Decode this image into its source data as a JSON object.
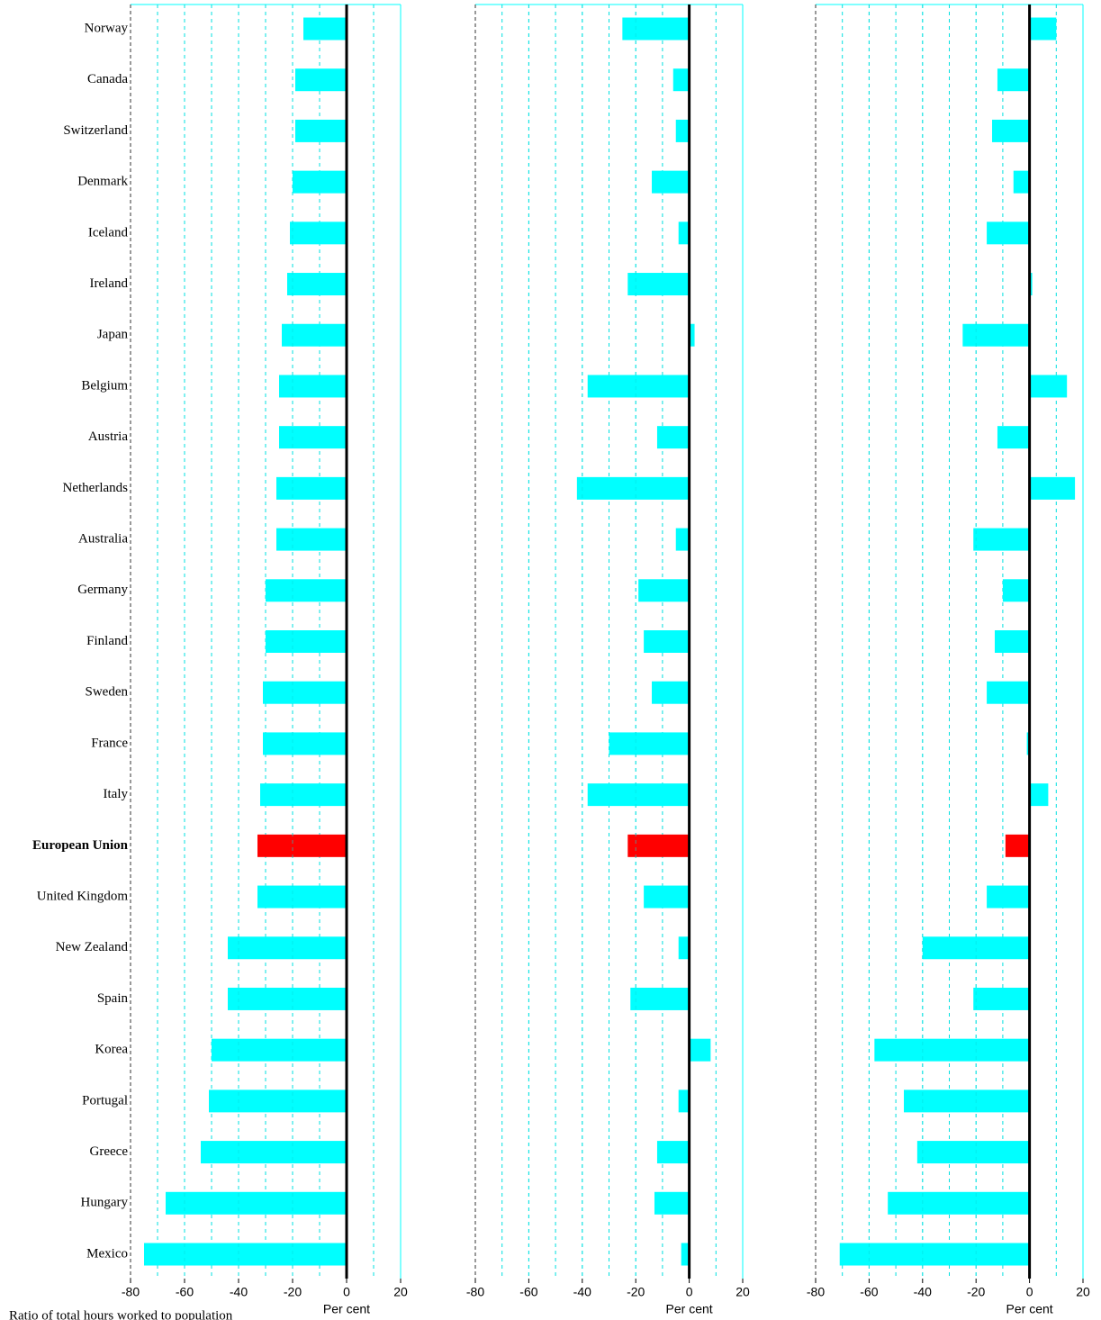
{
  "chart_data": [
    {
      "type": "bar",
      "orientation": "horizontal",
      "categories": [
        "Norway",
        "Canada",
        "Switzerland",
        "Denmark",
        "Iceland",
        "Ireland",
        "Japan",
        "Belgium",
        "Austria",
        "Netherlands",
        "Australia",
        "Germany",
        "Finland",
        "Sweden",
        "France",
        "Italy",
        "European Union",
        "United Kingdom",
        "New Zealand",
        "Spain",
        "Korea",
        "Portugal",
        "Greece",
        "Hungary",
        "Mexico"
      ],
      "values": [
        -16,
        -19,
        -19,
        -20,
        -21,
        -22,
        -24,
        -25,
        -25,
        -26,
        -26,
        -30,
        -30,
        -31,
        -31,
        -32,
        -33,
        -33,
        -44,
        -44,
        -50,
        -51,
        -54,
        -67,
        -75
      ],
      "color": "#00ffff",
      "highlight": {
        "index": 16,
        "color": "#ff0000"
      },
      "xlim": [
        -80,
        20
      ],
      "xticks": [
        -80,
        -60,
        -40,
        -20,
        0,
        20
      ],
      "grid": true,
      "xlabel": "Per cent",
      "note": "Ratio of total hours worked to population"
    },
    {
      "type": "bar",
      "orientation": "horizontal",
      "values": [
        -25,
        -6,
        -5,
        -14,
        -4,
        -23,
        2,
        -38,
        -12,
        -42,
        -5,
        -19,
        -17,
        -14,
        -30,
        -38,
        -23,
        -17,
        -4,
        -22,
        8,
        -4,
        -12,
        -13,
        -3
      ],
      "color": "#00ffff",
      "highlight": {
        "index": 16,
        "color": "#ff0000"
      },
      "xlim": [
        -80,
        20
      ],
      "xticks": [
        -80,
        -60,
        -40,
        -20,
        0,
        20
      ],
      "grid": true,
      "xlabel": "Per cent"
    },
    {
      "type": "bar",
      "orientation": "horizontal",
      "values": [
        10,
        -12,
        -14,
        -6,
        -16,
        1,
        -25,
        14,
        -12,
        17,
        -21,
        -10,
        -13,
        -16,
        -1,
        7,
        -9,
        -16,
        -40,
        -21,
        -58,
        -47,
        -42,
        -53,
        -71
      ],
      "color": "#00ffff",
      "highlight": {
        "index": 16,
        "color": "#ff0000"
      },
      "xlim": [
        -80,
        20
      ],
      "xticks": [
        -80,
        -60,
        -40,
        -20,
        0,
        20
      ],
      "grid": true,
      "xlabel": "Per cent"
    }
  ]
}
